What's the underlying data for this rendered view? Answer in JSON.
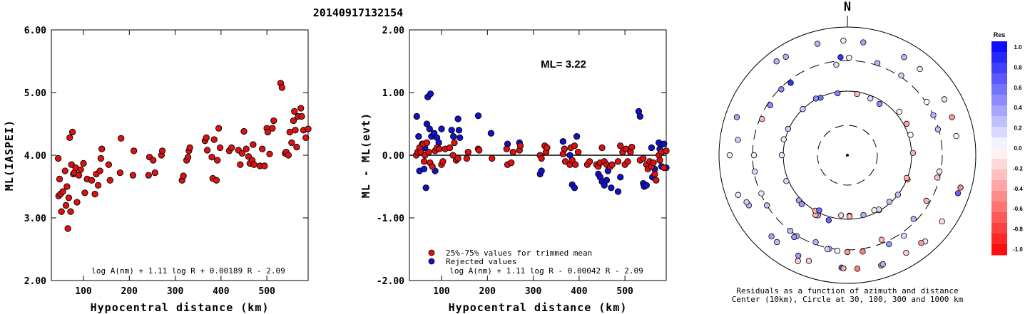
{
  "title": "20140917132154",
  "colors": {
    "trimmed": "#dd1111",
    "rejected": "#1111cc",
    "outline": "#000000"
  },
  "chart_data": [
    {
      "type": "scatter",
      "ylabel": "ML(IASPEI)",
      "xlabel": "Hypocentral distance (km)",
      "xlim": [
        30,
        590
      ],
      "ylim": [
        2.0,
        6.0
      ],
      "xticks": [
        "100",
        "200",
        "300",
        "400",
        "500"
      ],
      "yticks": [
        "2.00",
        "3.00",
        "4.00",
        "5.00",
        "6.00"
      ],
      "formula": "log A(nm) + 1.11 log R + 0.00189 R - 2.09",
      "points": [
        [
          45,
          3.95
        ],
        [
          46,
          3.35
        ],
        [
          48,
          3.62
        ],
        [
          50,
          3.38
        ],
        [
          52,
          3.1
        ],
        [
          55,
          3.42
        ],
        [
          60,
          3.75
        ],
        [
          62,
          3.2
        ],
        [
          64,
          3.5
        ],
        [
          66,
          2.83
        ],
        [
          68,
          3.32
        ],
        [
          70,
          4.28
        ],
        [
          72,
          3.1
        ],
        [
          74,
          3.85
        ],
        [
          76,
          4.37
        ],
        [
          78,
          3.7
        ],
        [
          80,
          3.72
        ],
        [
          83,
          3.8
        ],
        [
          86,
          3.25
        ],
        [
          90,
          3.68
        ],
        [
          94,
          3.77
        ],
        [
          100,
          3.87
        ],
        [
          103,
          3.4
        ],
        [
          108,
          3.62
        ],
        [
          118,
          3.6
        ],
        [
          125,
          3.38
        ],
        [
          128,
          3.7
        ],
        [
          132,
          3.52
        ],
        [
          136,
          3.75
        ],
        [
          138,
          3.95
        ],
        [
          140,
          4.1
        ],
        [
          155,
          3.85
        ],
        [
          158,
          3.6
        ],
        [
          180,
          3.72
        ],
        [
          182,
          4.27
        ],
        [
          208,
          3.68
        ],
        [
          210,
          4.07
        ],
        [
          242,
          3.68
        ],
        [
          244,
          3.97
        ],
        [
          252,
          3.92
        ],
        [
          256,
          3.72
        ],
        [
          270,
          4.0
        ],
        [
          272,
          4.07
        ],
        [
          315,
          3.6
        ],
        [
          318,
          3.67
        ],
        [
          325,
          3.92
        ],
        [
          328,
          3.97
        ],
        [
          330,
          4.07
        ],
        [
          332,
          4.12
        ],
        [
          365,
          4.23
        ],
        [
          368,
          4.28
        ],
        [
          370,
          4.08
        ],
        [
          380,
          3.97
        ],
        [
          382,
          3.63
        ],
        [
          385,
          4.25
        ],
        [
          390,
          3.6
        ],
        [
          392,
          3.92
        ],
        [
          395,
          4.43
        ],
        [
          398,
          4.12
        ],
        [
          418,
          4.07
        ],
        [
          423,
          4.12
        ],
        [
          438,
          4.08
        ],
        [
          442,
          3.85
        ],
        [
          446,
          4.03
        ],
        [
          450,
          4.38
        ],
        [
          455,
          4.1
        ],
        [
          460,
          3.98
        ],
        [
          463,
          3.87
        ],
        [
          468,
          3.92
        ],
        [
          470,
          4.17
        ],
        [
          472,
          3.85
        ],
        [
          485,
          3.83
        ],
        [
          490,
          4.1
        ],
        [
          495,
          3.83
        ],
        [
          500,
          4.43
        ],
        [
          502,
          4.37
        ],
        [
          506,
          4.02
        ],
        [
          512,
          4.43
        ],
        [
          515,
          4.55
        ],
        [
          530,
          5.15
        ],
        [
          533,
          5.08
        ],
        [
          540,
          4.03
        ],
        [
          542,
          4.05
        ],
        [
          547,
          4.0
        ],
        [
          550,
          4.37
        ],
        [
          554,
          4.2
        ],
        [
          558,
          4.55
        ],
        [
          560,
          4.7
        ],
        [
          562,
          4.4
        ],
        [
          565,
          4.13
        ],
        [
          568,
          4.62
        ],
        [
          574,
          4.75
        ],
        [
          576,
          4.62
        ],
        [
          580,
          4.4
        ],
        [
          585,
          4.28
        ],
        [
          590,
          4.42
        ]
      ]
    },
    {
      "type": "scatter",
      "ylabel": "ML - ML(evt)",
      "xlabel": "Hypocentral distance (km)",
      "xlim": [
        30,
        590
      ],
      "ylim": [
        -2.0,
        2.0
      ],
      "xticks": [
        "100",
        "200",
        "300",
        "400",
        "500"
      ],
      "yticks": [
        "-2.00",
        "-1.00",
        "0.00",
        "1.00",
        "2.00"
      ],
      "annotation": "ML= 3.22",
      "legend": [
        "25%-75% values for trimmed mean",
        "Rejected values"
      ],
      "formula": "log A(nm) + 1.11 log R - 0.00042 R - 2.09",
      "trimmed": [
        [
          45,
          0.0
        ],
        [
          48,
          0.05
        ],
        [
          52,
          0.12
        ],
        [
          55,
          0.05
        ],
        [
          60,
          0.18
        ],
        [
          62,
          -0.1
        ],
        [
          64,
          0.0
        ],
        [
          68,
          0.2
        ],
        [
          72,
          0.05
        ],
        [
          75,
          -0.12
        ],
        [
          80,
          -0.18
        ],
        [
          86,
          0.07
        ],
        [
          90,
          0.12
        ],
        [
          95,
          0.1
        ],
        [
          100,
          -0.15
        ],
        [
          103,
          -0.1
        ],
        [
          108,
          0.1
        ],
        [
          118,
          0.12
        ],
        [
          125,
          0.0
        ],
        [
          128,
          0.2
        ],
        [
          132,
          -0.08
        ],
        [
          136,
          -0.05
        ],
        [
          155,
          -0.05
        ],
        [
          158,
          0.05
        ],
        [
          180,
          0.1
        ],
        [
          182,
          0.08
        ],
        [
          210,
          -0.05
        ],
        [
          242,
          0.1
        ],
        [
          244,
          -0.15
        ],
        [
          252,
          -0.12
        ],
        [
          256,
          0.05
        ],
        [
          270,
          0.08
        ],
        [
          272,
          0.15
        ],
        [
          315,
          0.0
        ],
        [
          318,
          -0.05
        ],
        [
          325,
          0.15
        ],
        [
          328,
          0.05
        ],
        [
          330,
          0.12
        ],
        [
          365,
          0.02
        ],
        [
          368,
          0.1
        ],
        [
          370,
          -0.1
        ],
        [
          380,
          -0.15
        ],
        [
          382,
          0.12
        ],
        [
          385,
          -0.08
        ],
        [
          390,
          0.15
        ],
        [
          392,
          -0.15
        ],
        [
          398,
          0.05
        ],
        [
          418,
          -0.15
        ],
        [
          423,
          -0.1
        ],
        [
          438,
          -0.15
        ],
        [
          442,
          -0.18
        ],
        [
          446,
          -0.12
        ],
        [
          450,
          0.12
        ],
        [
          455,
          -0.1
        ],
        [
          460,
          -0.15
        ],
        [
          468,
          -0.18
        ],
        [
          472,
          -0.15
        ],
        [
          485,
          -0.1
        ],
        [
          490,
          0.15
        ],
        [
          495,
          0.05
        ],
        [
          500,
          -0.15
        ],
        [
          502,
          0.1
        ],
        [
          506,
          -0.1
        ],
        [
          512,
          0.05
        ],
        [
          515,
          0.13
        ],
        [
          533,
          -0.08
        ],
        [
          540,
          -0.05
        ],
        [
          547,
          -0.15
        ],
        [
          550,
          -0.22
        ],
        [
          554,
          -0.1
        ],
        [
          558,
          -0.18
        ],
        [
          562,
          -0.12
        ],
        [
          565,
          -0.3
        ],
        [
          568,
          -0.4
        ],
        [
          574,
          0.0
        ],
        [
          576,
          -0.08
        ],
        [
          580,
          0.05
        ],
        [
          585,
          -0.2
        ],
        [
          590,
          0.07
        ]
      ],
      "rejected": [
        [
          46,
          0.62
        ],
        [
          50,
          0.3
        ],
        [
          52,
          -0.25
        ],
        [
          58,
          0.18
        ],
        [
          62,
          -0.22
        ],
        [
          64,
          0.12
        ],
        [
          66,
          -0.52
        ],
        [
          68,
          0.5
        ],
        [
          70,
          0.93
        ],
        [
          74,
          0.42
        ],
        [
          76,
          0.98
        ],
        [
          78,
          0.3
        ],
        [
          84,
          0.35
        ],
        [
          86,
          -0.25
        ],
        [
          90,
          0.28
        ],
        [
          94,
          0.2
        ],
        [
          100,
          0.42
        ],
        [
          122,
          0.4
        ],
        [
          126,
          0.3
        ],
        [
          136,
          0.58
        ],
        [
          138,
          0.4
        ],
        [
          140,
          0.28
        ],
        [
          180,
          0.63
        ],
        [
          208,
          0.35
        ],
        [
          244,
          0.18
        ],
        [
          270,
          0.2
        ],
        [
          315,
          -0.3
        ],
        [
          318,
          -0.25
        ],
        [
          365,
          0.22
        ],
        [
          380,
          0.0
        ],
        [
          385,
          -0.47
        ],
        [
          390,
          -0.52
        ],
        [
          395,
          0.3
        ],
        [
          442,
          -0.3
        ],
        [
          446,
          -0.35
        ],
        [
          450,
          -0.42
        ],
        [
          455,
          -0.48
        ],
        [
          460,
          -0.4
        ],
        [
          463,
          -0.25
        ],
        [
          470,
          -0.52
        ],
        [
          485,
          -0.58
        ],
        [
          490,
          -0.35
        ],
        [
          530,
          0.7
        ],
        [
          533,
          0.62
        ],
        [
          540,
          -0.45
        ],
        [
          542,
          -0.5
        ],
        [
          547,
          -0.48
        ],
        [
          558,
          0.12
        ],
        [
          560,
          -0.35
        ],
        [
          565,
          -0.22
        ],
        [
          574,
          0.2
        ],
        [
          576,
          0.1
        ],
        [
          580,
          -0.18
        ],
        [
          585,
          0.18
        ],
        [
          590,
          -0.2
        ]
      ]
    },
    {
      "type": "scatter",
      "subtype": "polar",
      "north_label": "N",
      "caption": [
        "Residuals as a function of azimuth and distance",
        "Center (10km), Circle at 30, 100, 300 and 1000 km"
      ],
      "colorbar": {
        "label": "Res",
        "ticks": [
          "1.0",
          "0.8",
          "0.6",
          "0.4",
          "0.2",
          "0.0",
          "-0.2",
          "-0.4",
          "-0.6",
          "-0.8",
          "-1.0"
        ]
      },
      "points": [
        [
          178,
          1.0
        ],
        [
          186,
          0.05
        ],
        [
          183,
          0.6
        ],
        [
          196,
          0.6
        ],
        [
          191,
          0.25
        ],
        [
          206,
          0.4
        ],
        [
          206,
          0.3
        ],
        [
          217,
          0.25
        ],
        [
          223,
          0.35
        ],
        [
          227,
          0.35
        ],
        [
          246,
          0.1
        ],
        [
          243,
          0.25
        ],
        [
          270,
          0.1
        ],
        [
          270,
          0.05
        ],
        [
          270,
          -0.1
        ],
        [
          294,
          0.2
        ],
        [
          293,
          -0.3
        ],
        [
          289,
          0.35
        ],
        [
          316,
          0.2
        ],
        [
          322,
          0.8
        ],
        [
          328,
          0.3
        ],
        [
          335,
          0.55
        ],
        [
          353,
          0.15
        ],
        [
          345,
          0.3
        ],
        [
          351,
          0.5
        ],
        [
          356,
          0.8
        ],
        [
          358,
          -0.1
        ],
        [
          9,
          -0.3
        ],
        [
          1,
          0.05
        ],
        [
          8,
          0.35
        ],
        [
          22,
          0.15
        ],
        [
          18,
          0.3
        ],
        [
          30,
          0.3
        ],
        [
          32,
          0.45
        ],
        [
          34,
          0.2
        ],
        [
          40,
          0.1
        ],
        [
          50,
          -0.05
        ],
        [
          56,
          0.0
        ],
        [
          60,
          0.1
        ],
        [
          62,
          -0.35
        ],
        [
          65,
          0.3
        ],
        [
          70,
          -0.4
        ],
        [
          72,
          0.0
        ],
        [
          74,
          0.25
        ],
        [
          80,
          -0.05
        ],
        [
          88,
          -0.3
        ],
        [
          100,
          -0.1
        ],
        [
          106,
          -0.45
        ],
        [
          112,
          -0.45
        ],
        [
          104,
          -0.25
        ],
        [
          109,
          0.6
        ],
        [
          128,
          0.25
        ],
        [
          134,
          0.3
        ],
        [
          138,
          0.1
        ],
        [
          150,
          -0.35
        ],
        [
          158,
          -0.3
        ],
        [
          163,
          -0.5
        ],
        [
          150,
          0.15
        ],
        [
          155,
          0.4
        ],
        [
          162,
          0.3
        ],
        [
          165,
          0.3
        ],
        [
          171,
          -0.5
        ],
        [
          175,
          -0.5
        ],
        [
          178,
          -0.3
        ],
        [
          180,
          -0.4
        ],
        [
          182,
          -0.35
        ],
        [
          186,
          -0.15
        ],
        [
          192,
          0.2
        ],
        [
          200,
          -0.2
        ],
        [
          208,
          -0.3
        ],
        [
          212,
          0.3
        ],
        [
          219,
          0.25
        ],
        [
          223,
          0.4
        ],
        [
          238,
          0.25
        ],
        [
          245,
          0.2
        ],
        [
          247,
          0.15
        ],
        [
          260,
          0.15
        ],
        [
          278,
          0.2
        ],
        [
          284,
          -0.1
        ],
        [
          315,
          0.45
        ],
        [
          323,
          0.3
        ],
        [
          331,
          0.45
        ],
        [
          200,
          0.3
        ],
        [
          205,
          -0.2
        ],
        [
          210,
          -0.35
        ],
        [
          303,
          0.45
        ],
        [
          250,
          0.1
        ],
        [
          111,
          -0.3
        ],
        [
          120,
          -0.3
        ],
        [
          125,
          -0.15
        ],
        [
          138,
          0.25
        ],
        [
          145,
          0.15
        ],
        [
          140,
          -0.4
        ],
        [
          207,
          0.55
        ],
        [
          213,
          0.4
        ],
        [
          149,
          -0.2
        ],
        [
          154,
          -0.1
        ]
      ]
    }
  ]
}
